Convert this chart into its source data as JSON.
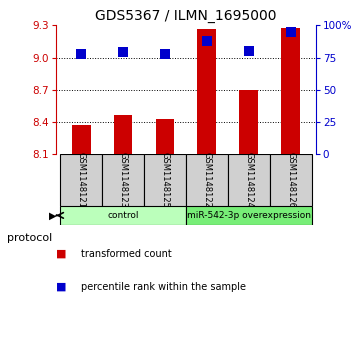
{
  "title": "GDS5367 / ILMN_1695000",
  "samples": [
    "GSM1148121",
    "GSM1148123",
    "GSM1148125",
    "GSM1148122",
    "GSM1148124",
    "GSM1148126"
  ],
  "bar_values": [
    8.37,
    8.47,
    8.43,
    9.27,
    8.7,
    9.28
  ],
  "bar_base": 8.1,
  "percentile_values": [
    78,
    79,
    78,
    88,
    80,
    95
  ],
  "ylim_left": [
    8.1,
    9.3
  ],
  "ylim_right": [
    0,
    100
  ],
  "yticks_left": [
    8.1,
    8.4,
    8.7,
    9.0,
    9.3
  ],
  "yticks_right": [
    0,
    25,
    50,
    75,
    100
  ],
  "grid_lines": [
    9.0,
    8.7,
    8.4
  ],
  "bar_color": "#cc0000",
  "marker_color": "#0000cc",
  "protocol_groups": [
    {
      "label": "control",
      "indices": [
        0,
        1,
        2
      ],
      "color": "#bbffbb"
    },
    {
      "label": "miR-542-3p overexpression",
      "indices": [
        3,
        4,
        5
      ],
      "color": "#77ee77"
    }
  ],
  "sample_box_color": "#d0d0d0",
  "bar_width": 0.45,
  "marker_size": 55,
  "left_axis_color": "#cc0000",
  "right_axis_color": "#0000cc",
  "legend_items": [
    {
      "label": "transformed count",
      "color": "#cc0000"
    },
    {
      "label": "percentile rank within the sample",
      "color": "#0000cc"
    }
  ],
  "protocol_label": "protocol"
}
